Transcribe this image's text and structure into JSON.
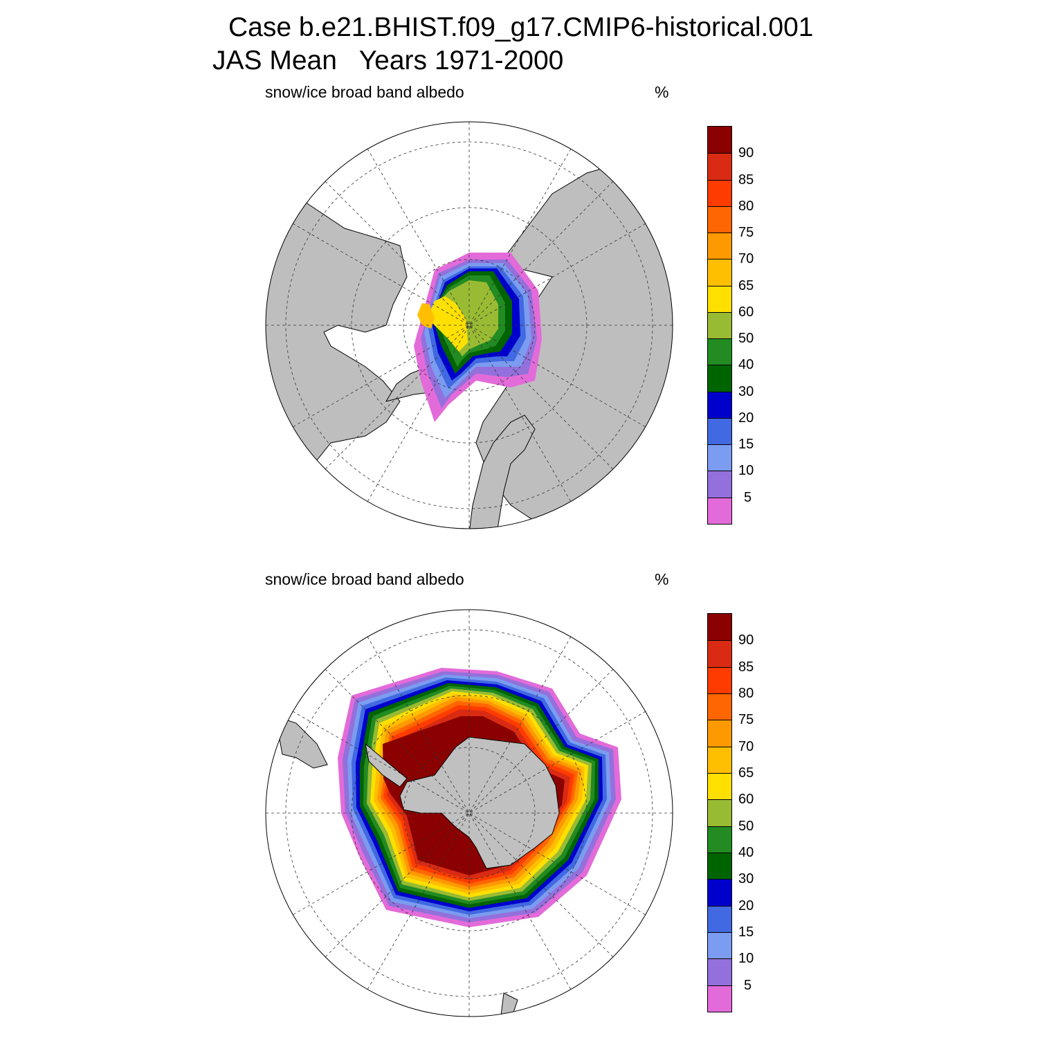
{
  "header": {
    "case_title": "Case b.e21.BHIST.f09_g17.CMIP6-historical.001",
    "period_title": "JAS Mean   Years 1971-2000"
  },
  "panels": [
    {
      "id": "north",
      "hemisphere": "Northern Hemisphere (polar stereographic)",
      "variable_label": "snow/ice broad band albedo",
      "unit_label": "%"
    },
    {
      "id": "south",
      "hemisphere": "Southern Hemisphere (polar stereographic)",
      "variable_label": "snow/ice broad band albedo",
      "unit_label": "%"
    }
  ],
  "colorbar": {
    "levels": [
      "90",
      "85",
      "80",
      "75",
      "70",
      "65",
      "60",
      "50",
      "40",
      "30",
      "20",
      "15",
      "10",
      "5"
    ],
    "colors_top_to_bottom": [
      "#8b0000",
      "#d92b13",
      "#ff3c00",
      "#ff6600",
      "#ff9900",
      "#ffbf00",
      "#ffe000",
      "#99bb33",
      "#228b22",
      "#006400",
      "#0000cd",
      "#4169e1",
      "#7b9cf0",
      "#9370db",
      "#e36bd9"
    ]
  },
  "chart_data": [
    {
      "type": "heatmap",
      "title": "snow/ice broad band albedo",
      "units": "%",
      "region": "Northern Hemisphere",
      "levels": [
        5,
        10,
        15,
        20,
        30,
        40,
        50,
        60,
        65,
        70,
        75,
        80,
        85,
        90
      ],
      "description_values": {
        "central_arctic_max_range": "60-65",
        "marginal_ice_range": "5-30"
      }
    },
    {
      "type": "heatmap",
      "title": "snow/ice broad band albedo",
      "units": "%",
      "region": "Southern Hemisphere",
      "levels": [
        5,
        10,
        15,
        20,
        30,
        40,
        50,
        60,
        65,
        70,
        75,
        80,
        85,
        90
      ],
      "description_values": {
        "inner_pack_ice_range": ">90",
        "ice_edge_range": "5-40"
      }
    }
  ],
  "map_style": {
    "land_color": "#bebebe",
    "ocean_color": "#ffffff",
    "land_in_ice_color": "#c0c0c0"
  }
}
